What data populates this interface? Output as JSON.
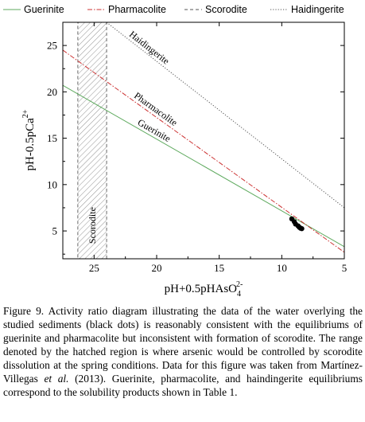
{
  "chart_data": {
    "type": "line",
    "xlabel": "pH+0.5pHAsO",
    "xlabel_sub": "4",
    "xlabel_sup": "2-",
    "ylabel": "pH-0.5pCa",
    "ylabel_sup": "2+",
    "xlim": [
      27.5,
      5
    ],
    "ylim": [
      2,
      27.5
    ],
    "x_reversed": true,
    "x_ticks": [
      25,
      20,
      15,
      10,
      5
    ],
    "x_tick_labels": [
      "25",
      "20",
      "15",
      "10",
      "5"
    ],
    "y_ticks": [
      5,
      10,
      15,
      20,
      25
    ],
    "y_tick_labels": [
      "5",
      "10",
      "15",
      "20",
      "25"
    ],
    "grid": false,
    "legend_position": "top",
    "legend": [
      {
        "label": "Guerinite",
        "color": "#5faa5f",
        "dash": "solid"
      },
      {
        "label": "Pharmacolite",
        "color": "#cc3333",
        "dash": "dashdot"
      },
      {
        "label": "Scorodite",
        "color": "#555555",
        "dash": "dashed"
      },
      {
        "label": "Haidingerite",
        "color": "#555555",
        "dash": "dotted"
      }
    ],
    "series": [
      {
        "name": "Guerinite",
        "color": "#5faa5f",
        "dash": "solid",
        "x": [
          27.5,
          5
        ],
        "y": [
          20.7,
          3.3
        ]
      },
      {
        "name": "Pharmacolite",
        "color": "#cc3333",
        "dash": "dashdot",
        "x": [
          27.5,
          5
        ],
        "y": [
          24.5,
          2.7
        ]
      },
      {
        "name": "Haidingerite",
        "color": "#555555",
        "dash": "dotted",
        "x": [
          24,
          5
        ],
        "y": [
          27.5,
          7.5
        ]
      }
    ],
    "line_labels": [
      "Haidingerite",
      "Pharmacolite",
      "Guerinite"
    ],
    "scorodite_region": {
      "x": [
        26.3,
        24
      ],
      "label": "Scorodite"
    },
    "points": {
      "color": "#000000",
      "x": [
        9.2,
        9.0,
        8.9,
        8.7,
        8.6,
        8.5,
        8.4
      ],
      "y": [
        6.3,
        6.0,
        5.75,
        5.55,
        5.4,
        5.3,
        5.25
      ]
    }
  },
  "caption": "Figure 9. Activity ratio diagram illustrating the data of the water overlying the studied sediments (black dots) is reasonably consistent with the equilibriums of guerinite and pharmacolite but inconsistent with formation of scorodite. The range denoted by the hatched region is where arsenic would be controlled by scorodite dissolution at the spring conditions. Data for this figure was taken from Martínez-Villegas et al. (2013). Guerinite, pharmacolite, and haindingerite equilibriums correspond to the solubility products shown in Table 1.",
  "caption_parts": {
    "before_italic": "Figure 9. Activity ratio diagram illustrating the data of the water overlying the studied sediments (black dots) is reasonably consistent with the equilibriums of guerinite and pharmacolite but inconsistent with formation of scorodite. The range denoted by the hatched region is where arsenic would be controlled by scorodite dissolution at the spring conditions. Data for this figure was taken from Martínez-Villegas ",
    "italic": "et al.",
    "after_italic": " (2013). Guerinite, pharmacolite, and haindingerite equilibriums correspond to the solubility products shown in Table 1."
  }
}
